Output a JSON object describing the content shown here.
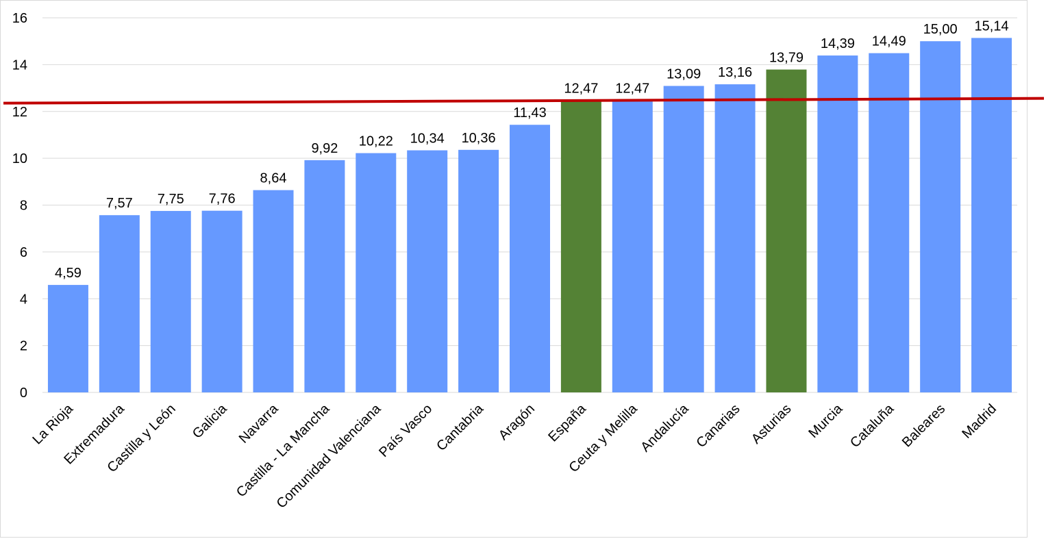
{
  "chart_data": {
    "type": "bar",
    "title": "",
    "xlabel": "",
    "ylabel": "",
    "ylim": [
      0,
      16
    ],
    "yticks": [
      "0",
      "2",
      "4",
      "6",
      "8",
      "10",
      "12",
      "14",
      "16"
    ],
    "grid": true,
    "legend": "none",
    "categories": [
      "La Rioja",
      "Extremadura",
      "Castilla y León",
      "Galicia",
      "Navarra",
      "Castilla - La Mancha",
      "Comunidad Valenciana",
      "País Vasco",
      "Cantabria",
      "Aragón",
      "España",
      "Ceuta y Melilla",
      "Andalucía",
      "Canarias",
      "Asturias",
      "Murcia",
      "Cataluña",
      "Baleares",
      "Madrid"
    ],
    "values": [
      4.59,
      7.57,
      7.75,
      7.76,
      8.64,
      9.92,
      10.22,
      10.34,
      10.36,
      11.43,
      12.47,
      12.47,
      13.09,
      13.16,
      13.79,
      14.39,
      14.49,
      15.0,
      15.14
    ],
    "data_labels": [
      "4,59",
      "7,57",
      "7,75",
      "7,76",
      "8,64",
      "9,92",
      "10,22",
      "10,34",
      "10,36",
      "11,43",
      "12,47",
      "12,47",
      "13,09",
      "13,16",
      "13,79",
      "14,39",
      "14,49",
      "15,00",
      "15,14"
    ],
    "highlighted": [
      "España",
      "Asturias"
    ],
    "reference_line": 12.47,
    "colors": {
      "bar": "#6699FF",
      "highlight": "#548235",
      "reference_line": "#C00000",
      "grid": "#D9D9D9"
    }
  }
}
